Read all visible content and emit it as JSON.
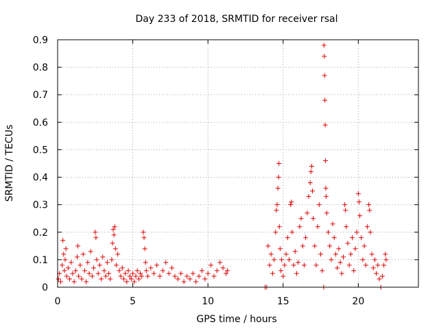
{
  "chart_data": {
    "type": "scatter",
    "title": "Day 233 of 2018, SRMTID for receiver rsal",
    "xlabel": "GPS time / hours",
    "ylabel": "SRMTID / TECUs",
    "xlim": [
      0,
      24
    ],
    "ylim": [
      0,
      0.9
    ],
    "xticks": [
      0,
      5,
      10,
      15,
      20
    ],
    "yticks": [
      0,
      0.1,
      0.2,
      0.3,
      0.4,
      0.5,
      0.6,
      0.7,
      0.8,
      0.9
    ],
    "ytick_labels": [
      "0",
      "0.1",
      "0.2",
      "0.3",
      "0.4",
      "0.5",
      "0.6",
      "0.7",
      "0.8",
      "0.9"
    ],
    "grid": true,
    "marker": "+",
    "color": "#e00000",
    "series": [
      {
        "name": "SRMTID",
        "points": [
          [
            0.05,
            0.03
          ],
          [
            0.12,
            0.05
          ],
          [
            0.2,
            0.02
          ],
          [
            0.3,
            0.08
          ],
          [
            0.35,
            0.17
          ],
          [
            0.4,
            0.12
          ],
          [
            0.45,
            0.06
          ],
          [
            0.5,
            0.1
          ],
          [
            0.55,
            0.14
          ],
          [
            0.6,
            0.04
          ],
          [
            0.7,
            0.07
          ],
          [
            0.8,
            0.03
          ],
          [
            0.9,
            0.09
          ],
          [
            1.0,
            0.05
          ],
          [
            1.1,
            0.02
          ],
          [
            1.2,
            0.06
          ],
          [
            1.3,
            0.11
          ],
          [
            1.35,
            0.15
          ],
          [
            1.4,
            0.04
          ],
          [
            1.5,
            0.08
          ],
          [
            1.6,
            0.03
          ],
          [
            1.7,
            0.12
          ],
          [
            1.8,
            0.06
          ],
          [
            1.9,
            0.02
          ],
          [
            2.0,
            0.09
          ],
          [
            2.1,
            0.05
          ],
          [
            2.2,
            0.13
          ],
          [
            2.3,
            0.04
          ],
          [
            2.4,
            0.07
          ],
          [
            2.5,
            0.2
          ],
          [
            2.55,
            0.18
          ],
          [
            2.6,
            0.1
          ],
          [
            2.7,
            0.05
          ],
          [
            2.8,
            0.08
          ],
          [
            2.9,
            0.03
          ],
          [
            3.0,
            0.11
          ],
          [
            3.1,
            0.06
          ],
          [
            3.2,
            0.04
          ],
          [
            3.3,
            0.09
          ],
          [
            3.4,
            0.05
          ],
          [
            3.5,
            0.03
          ],
          [
            3.6,
            0.1
          ],
          [
            3.65,
            0.16
          ],
          [
            3.7,
            0.21
          ],
          [
            3.75,
            0.19
          ],
          [
            3.8,
            0.22
          ],
          [
            3.85,
            0.14
          ],
          [
            3.9,
            0.08
          ],
          [
            4.0,
            0.12
          ],
          [
            4.1,
            0.06
          ],
          [
            4.2,
            0.04
          ],
          [
            4.3,
            0.07
          ],
          [
            4.4,
            0.03
          ],
          [
            4.5,
            0.05
          ],
          [
            4.6,
            0.02
          ],
          [
            4.7,
            0.06
          ],
          [
            4.8,
            0.04
          ],
          [
            4.9,
            0.03
          ],
          [
            5.0,
            0.05
          ],
          [
            5.1,
            0.02
          ],
          [
            5.2,
            0.04
          ],
          [
            5.3,
            0.06
          ],
          [
            5.4,
            0.03
          ],
          [
            5.5,
            0.05
          ],
          [
            5.6,
            0.04
          ],
          [
            5.7,
            0.2
          ],
          [
            5.75,
            0.18
          ],
          [
            5.8,
            0.14
          ],
          [
            5.85,
            0.09
          ],
          [
            5.9,
            0.06
          ],
          [
            6.0,
            0.04
          ],
          [
            6.2,
            0.07
          ],
          [
            6.4,
            0.05
          ],
          [
            6.6,
            0.08
          ],
          [
            6.8,
            0.04
          ],
          [
            7.0,
            0.06
          ],
          [
            7.2,
            0.09
          ],
          [
            7.4,
            0.05
          ],
          [
            7.6,
            0.07
          ],
          [
            7.8,
            0.04
          ],
          [
            8.0,
            0.03
          ],
          [
            8.2,
            0.05
          ],
          [
            8.4,
            0.02
          ],
          [
            8.6,
            0.04
          ],
          [
            8.8,
            0.03
          ],
          [
            9.0,
            0.05
          ],
          [
            9.2,
            0.02
          ],
          [
            9.4,
            0.04
          ],
          [
            9.6,
            0.06
          ],
          [
            9.8,
            0.03
          ],
          [
            10.0,
            0.05
          ],
          [
            10.2,
            0.08
          ],
          [
            10.4,
            0.04
          ],
          [
            10.6,
            0.06
          ],
          [
            10.8,
            0.09
          ],
          [
            11.0,
            0.07
          ],
          [
            11.2,
            0.05
          ],
          [
            11.3,
            0.06
          ],
          [
            13.8,
            0.0
          ],
          [
            13.9,
            0.0
          ],
          [
            14.0,
            0.15
          ],
          [
            14.1,
            0.08
          ],
          [
            14.2,
            0.12
          ],
          [
            14.3,
            0.05
          ],
          [
            14.4,
            0.1
          ],
          [
            14.5,
            0.2
          ],
          [
            14.55,
            0.28
          ],
          [
            14.6,
            0.3
          ],
          [
            14.65,
            0.36
          ],
          [
            14.7,
            0.4
          ],
          [
            14.72,
            0.45
          ],
          [
            14.75,
            0.22
          ],
          [
            14.8,
            0.14
          ],
          [
            14.85,
            0.06
          ],
          [
            14.9,
            0.1
          ],
          [
            15.0,
            0.04
          ],
          [
            15.1,
            0.08
          ],
          [
            15.2,
            0.12
          ],
          [
            15.3,
            0.18
          ],
          [
            15.4,
            0.1
          ],
          [
            15.5,
            0.3
          ],
          [
            15.55,
            0.31
          ],
          [
            15.6,
            0.2
          ],
          [
            15.7,
            0.08
          ],
          [
            15.8,
            0.13
          ],
          [
            15.9,
            0.05
          ],
          [
            16.0,
            0.09
          ],
          [
            16.1,
            0.22
          ],
          [
            16.2,
            0.25
          ],
          [
            16.3,
            0.15
          ],
          [
            16.4,
            0.08
          ],
          [
            16.5,
            0.18
          ],
          [
            16.6,
            0.27
          ],
          [
            16.7,
            0.33
          ],
          [
            16.8,
            0.38
          ],
          [
            16.85,
            0.42
          ],
          [
            16.9,
            0.44
          ],
          [
            16.95,
            0.35
          ],
          [
            17.0,
            0.25
          ],
          [
            17.1,
            0.15
          ],
          [
            17.2,
            0.08
          ],
          [
            17.3,
            0.22
          ],
          [
            17.4,
            0.3
          ],
          [
            17.5,
            0.12
          ],
          [
            17.6,
            0.06
          ],
          [
            17.7,
            0.0
          ],
          [
            17.72,
            0.88
          ],
          [
            17.74,
            0.84
          ],
          [
            17.76,
            0.77
          ],
          [
            17.78,
            0.68
          ],
          [
            17.8,
            0.59
          ],
          [
            17.82,
            0.46
          ],
          [
            17.84,
            0.36
          ],
          [
            17.86,
            0.33
          ],
          [
            17.9,
            0.27
          ],
          [
            18.0,
            0.2
          ],
          [
            18.1,
            0.15
          ],
          [
            18.2,
            0.1
          ],
          [
            18.3,
            0.23
          ],
          [
            18.4,
            0.18
          ],
          [
            18.5,
            0.12
          ],
          [
            18.6,
            0.07
          ],
          [
            18.7,
            0.14
          ],
          [
            18.8,
            0.09
          ],
          [
            18.9,
            0.05
          ],
          [
            19.0,
            0.11
          ],
          [
            19.1,
            0.3
          ],
          [
            19.15,
            0.28
          ],
          [
            19.2,
            0.22
          ],
          [
            19.3,
            0.16
          ],
          [
            19.4,
            0.08
          ],
          [
            19.5,
            0.12
          ],
          [
            19.6,
            0.18
          ],
          [
            19.7,
            0.06
          ],
          [
            19.8,
            0.14
          ],
          [
            19.9,
            0.2
          ],
          [
            20.0,
            0.34
          ],
          [
            20.05,
            0.31
          ],
          [
            20.1,
            0.26
          ],
          [
            20.2,
            0.18
          ],
          [
            20.3,
            0.1
          ],
          [
            20.4,
            0.15
          ],
          [
            20.5,
            0.08
          ],
          [
            20.6,
            0.22
          ],
          [
            20.7,
            0.3
          ],
          [
            20.75,
            0.28
          ],
          [
            20.8,
            0.2
          ],
          [
            20.9,
            0.12
          ],
          [
            21.0,
            0.07
          ],
          [
            21.1,
            0.1
          ],
          [
            21.2,
            0.05
          ],
          [
            21.3,
            0.08
          ],
          [
            21.4,
            0.03
          ],
          [
            21.5,
            0.0
          ],
          [
            21.6,
            0.04
          ],
          [
            21.7,
            0.08
          ],
          [
            21.8,
            0.12
          ],
          [
            21.85,
            0.1
          ]
        ]
      }
    ]
  }
}
